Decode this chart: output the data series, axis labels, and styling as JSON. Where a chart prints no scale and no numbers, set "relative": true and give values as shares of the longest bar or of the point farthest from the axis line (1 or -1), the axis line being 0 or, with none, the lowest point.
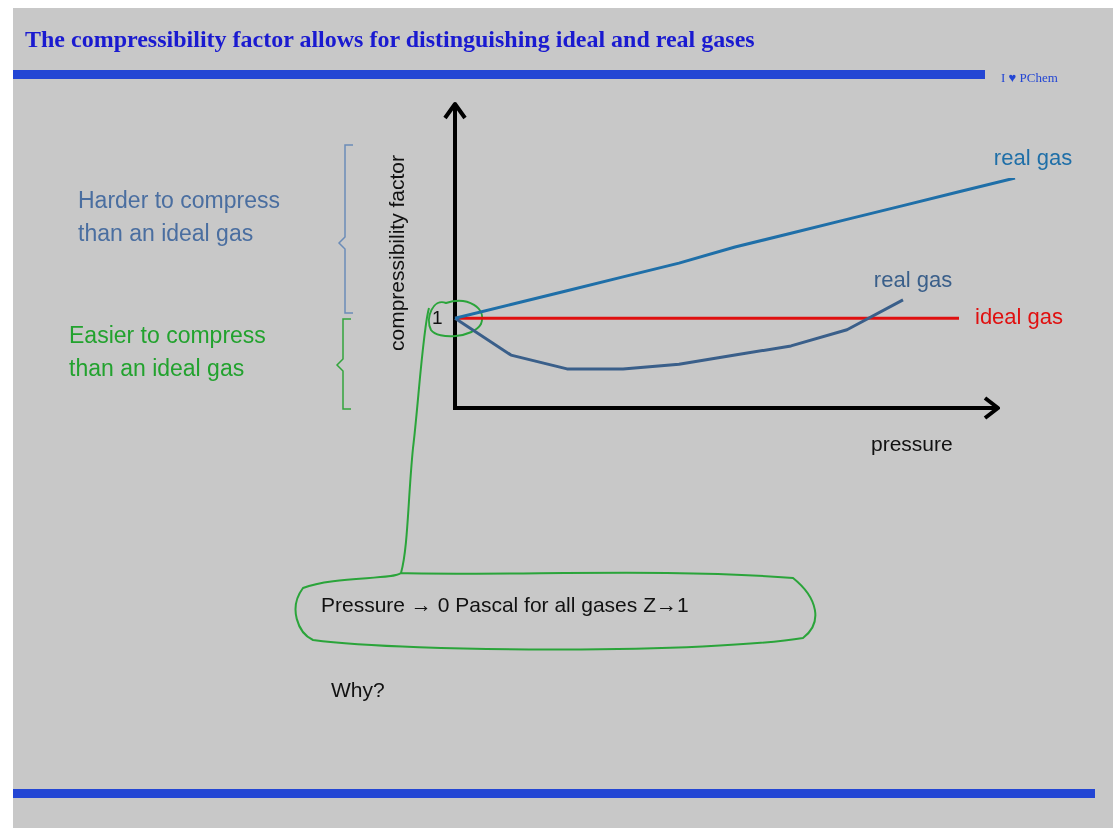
{
  "chart_data": {
    "type": "line",
    "title": "The compressibility factor allows for distinguishing ideal and real gases",
    "xlabel": "pressure",
    "ylabel": "compressibility factor",
    "relative": true,
    "legend": false,
    "marker": "none",
    "line_style": "solid",
    "categories": [
      null,
      null,
      null,
      null,
      null,
      null,
      null,
      null,
      null,
      null,
      null
    ],
    "series": [
      {
        "name": "real gas",
        "color": "#1f6fa8",
        "values": [
          0.39,
          0.45,
          0.51,
          0.57,
          0.63,
          0.7,
          0.76,
          0.82,
          0.88,
          0.94,
          1
        ]
      },
      {
        "name": "real gas",
        "color": "#3a5f8a",
        "values": [
          0.39,
          0.23,
          0.17,
          0.17,
          0.19,
          0.23,
          0.27,
          0.34,
          0.47,
          null,
          null
        ]
      },
      {
        "name": "ideal gas",
        "color": "#e01010",
        "values": [
          0.39,
          0.39,
          0.39,
          0.39,
          0.39,
          0.39,
          0.39,
          0.39,
          0.39,
          0.39,
          null
        ]
      }
    ],
    "annotations": [
      "Harder to compress than an ideal gas",
      "Easier to compress than an ideal gas",
      "Pressure → 0 Pascal for all gases Z→1",
      "Why?",
      "I ♥ PChem",
      "1"
    ]
  }
}
